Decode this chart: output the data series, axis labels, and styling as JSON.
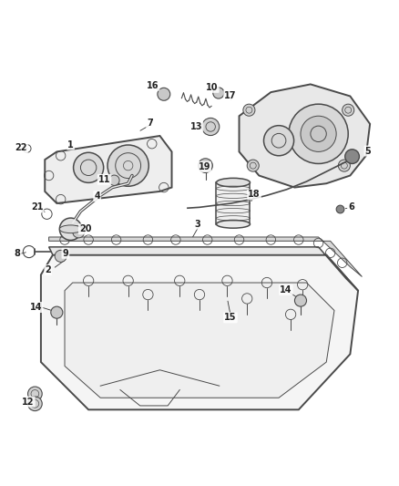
{
  "title": "",
  "background_color": "#ffffff",
  "line_color": "#4a4a4a",
  "label_color": "#222222",
  "figsize": [
    4.38,
    5.33
  ],
  "dpi": 100
}
